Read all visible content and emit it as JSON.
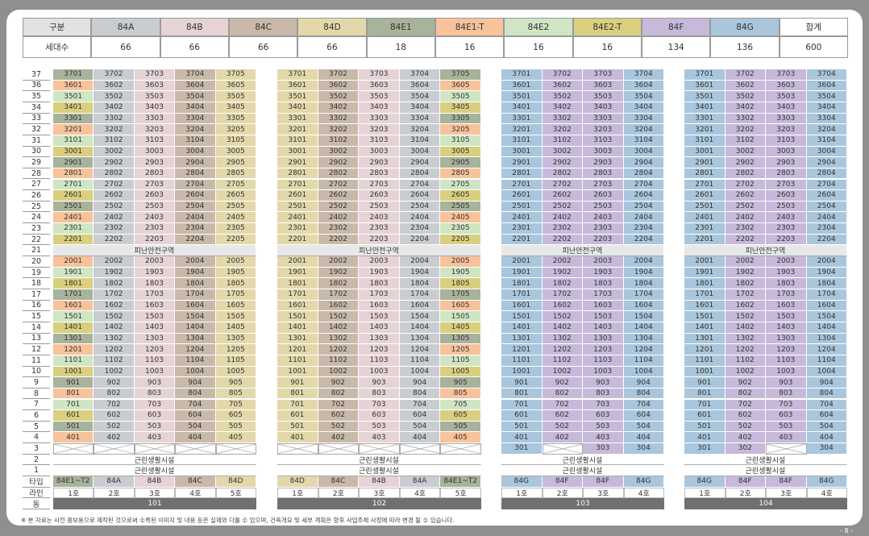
{
  "header": {
    "label_col": "구분",
    "count_label": "세대수",
    "types": [
      {
        "label": "84A",
        "color": "#c9cdd1",
        "count": 66
      },
      {
        "label": "84B",
        "color": "#e6d3d6",
        "count": 66
      },
      {
        "label": "84C",
        "color": "#c8b9a9",
        "count": 66
      },
      {
        "label": "84D",
        "color": "#e3d8aa",
        "count": 66
      },
      {
        "label": "84E1",
        "color": "#a8b39c",
        "count": 18
      },
      {
        "label": "84E1-T",
        "color": "#f8c29b",
        "count": 16
      },
      {
        "label": "84E2",
        "color": "#cfe5c3",
        "count": 16
      },
      {
        "label": "84E2-T",
        "color": "#d9cf7f",
        "count": 16
      },
      {
        "label": "84F",
        "color": "#c6b9da",
        "count": 134
      },
      {
        "label": "84G",
        "color": "#a9c6dc",
        "count": 136
      }
    ],
    "total_label": "합계",
    "total": 600
  },
  "floors": [
    37,
    36,
    35,
    34,
    33,
    32,
    31,
    30,
    29,
    28,
    27,
    26,
    25,
    24,
    23,
    22,
    21,
    20,
    19,
    18,
    17,
    16,
    15,
    14,
    13,
    12,
    11,
    10,
    9,
    8,
    7,
    6,
    5,
    4,
    3,
    2,
    1
  ],
  "row_labels": {
    "type": "타입",
    "line": "라인",
    "building": "동"
  },
  "buildings": [
    {
      "name": "101",
      "types": [
        "84E1~T2",
        "84A",
        "84B",
        "84C",
        "84D"
      ],
      "lines": [
        "1호",
        "2호",
        "3호",
        "4호",
        "5호"
      ],
      "rows": [
        [
          3701,
          3702,
          3703,
          3704,
          3705
        ],
        [
          3601,
          3602,
          3603,
          3604,
          3605
        ],
        [
          3501,
          3502,
          3503,
          3504,
          3505
        ],
        [
          3401,
          3402,
          3403,
          3404,
          3405
        ],
        [
          3301,
          3302,
          3303,
          3304,
          3305
        ],
        [
          3201,
          3202,
          3203,
          3204,
          3205
        ],
        [
          3101,
          3102,
          3103,
          3104,
          3105
        ],
        [
          3001,
          3002,
          3003,
          3004,
          3005
        ],
        [
          2901,
          2902,
          2903,
          2904,
          2905
        ],
        [
          2801,
          2802,
          2803,
          2804,
          2805
        ],
        [
          2701,
          2702,
          2703,
          2704,
          2705
        ],
        [
          2601,
          2602,
          2603,
          2604,
          2605
        ],
        [
          2501,
          2502,
          2503,
          2504,
          2505
        ],
        [
          2401,
          2402,
          2403,
          2404,
          2405
        ],
        [
          2301,
          2302,
          2303,
          2304,
          2305
        ],
        [
          2201,
          2202,
          2203,
          2204,
          2205
        ],
        "피난안전구역",
        [
          2001,
          2002,
          2003,
          2004,
          2005
        ],
        [
          1901,
          1902,
          1903,
          1904,
          1905
        ],
        [
          1801,
          1802,
          1803,
          1804,
          1805
        ],
        [
          1701,
          1702,
          1703,
          1704,
          1705
        ],
        [
          1601,
          1602,
          1603,
          1604,
          1605
        ],
        [
          1501,
          1502,
          1503,
          1504,
          1505
        ],
        [
          1401,
          1402,
          1403,
          1404,
          1405
        ],
        [
          1301,
          1302,
          1303,
          1304,
          1305
        ],
        [
          1201,
          1202,
          1203,
          1204,
          1205
        ],
        [
          1101,
          1102,
          1103,
          1104,
          1105
        ],
        [
          1001,
          1002,
          1003,
          1004,
          1005
        ],
        [
          901,
          902,
          903,
          904,
          905
        ],
        [
          801,
          802,
          803,
          804,
          805
        ],
        [
          701,
          702,
          703,
          704,
          705
        ],
        [
          601,
          602,
          603,
          604,
          605
        ],
        [
          501,
          502,
          503,
          504,
          505
        ],
        [
          401,
          402,
          403,
          404,
          405
        ],
        [
          null,
          null,
          null,
          null,
          null
        ],
        "근린생활시설",
        "근린생활시설"
      ]
    },
    {
      "name": "102",
      "types": [
        "84D",
        "84C",
        "84B",
        "84A",
        "84E1~T2"
      ],
      "lines": [
        "1호",
        "2호",
        "3호",
        "4호",
        "5호"
      ],
      "rows": [
        [
          3701,
          3702,
          3703,
          3704,
          3705
        ],
        [
          3601,
          3602,
          3603,
          3604,
          3605
        ],
        [
          3501,
          3502,
          3503,
          3504,
          3505
        ],
        [
          3401,
          3402,
          3403,
          3404,
          3405
        ],
        [
          3301,
          3302,
          3303,
          3304,
          3305
        ],
        [
          3201,
          3202,
          3203,
          3204,
          3205
        ],
        [
          3101,
          3102,
          3103,
          3104,
          3105
        ],
        [
          3001,
          3002,
          3003,
          3004,
          3005
        ],
        [
          2901,
          2902,
          2903,
          2904,
          2905
        ],
        [
          2801,
          2802,
          2803,
          2804,
          2805
        ],
        [
          2701,
          2702,
          2703,
          2704,
          2705
        ],
        [
          2601,
          2602,
          2603,
          2604,
          2605
        ],
        [
          2501,
          2502,
          2503,
          2504,
          2505
        ],
        [
          2401,
          2402,
          2403,
          2404,
          2405
        ],
        [
          2301,
          2302,
          2303,
          2304,
          2305
        ],
        [
          2201,
          2202,
          2203,
          2204,
          2205
        ],
        "피난안전구역",
        [
          2001,
          2002,
          2003,
          2004,
          2005
        ],
        [
          1901,
          1902,
          1903,
          1904,
          1905
        ],
        [
          1801,
          1802,
          1803,
          1804,
          1805
        ],
        [
          1701,
          1702,
          1703,
          1704,
          1705
        ],
        [
          1601,
          1602,
          1603,
          1604,
          1605
        ],
        [
          1501,
          1502,
          1503,
          1504,
          1505
        ],
        [
          1401,
          1402,
          1403,
          1404,
          1405
        ],
        [
          1301,
          1302,
          1303,
          1304,
          1305
        ],
        [
          1201,
          1202,
          1203,
          1204,
          1205
        ],
        [
          1101,
          1102,
          1103,
          1104,
          1105
        ],
        [
          1001,
          1002,
          1003,
          1004,
          1005
        ],
        [
          901,
          902,
          903,
          904,
          905
        ],
        [
          801,
          802,
          803,
          804,
          805
        ],
        [
          701,
          702,
          703,
          704,
          705
        ],
        [
          601,
          602,
          603,
          604,
          605
        ],
        [
          501,
          502,
          503,
          504,
          505
        ],
        [
          401,
          402,
          403,
          404,
          405
        ],
        [
          null,
          null,
          null,
          null,
          null
        ],
        "근린생활시설",
        "근린생활시설"
      ]
    },
    {
      "name": "103",
      "types": [
        "84G",
        "84F",
        "84F",
        "84G"
      ],
      "lines": [
        "1호",
        "2호",
        "3호",
        "4호"
      ],
      "rows": [
        [
          3701,
          3702,
          3703,
          3704
        ],
        [
          3601,
          3602,
          3603,
          3604
        ],
        [
          3501,
          3502,
          3503,
          3504
        ],
        [
          3401,
          3402,
          3403,
          3404
        ],
        [
          3301,
          3302,
          3303,
          3304
        ],
        [
          3201,
          3202,
          3203,
          3204
        ],
        [
          3101,
          3102,
          3103,
          3104
        ],
        [
          3001,
          3002,
          3003,
          3004
        ],
        [
          2901,
          2902,
          2903,
          2904
        ],
        [
          2801,
          2802,
          2803,
          2804
        ],
        [
          2701,
          2702,
          2703,
          2704
        ],
        [
          2601,
          2602,
          2603,
          2604
        ],
        [
          2501,
          2502,
          2503,
          2504
        ],
        [
          2401,
          2402,
          2403,
          2404
        ],
        [
          2301,
          2302,
          2303,
          2304
        ],
        [
          2201,
          2202,
          2203,
          2204
        ],
        "피난안전구역",
        [
          2001,
          2002,
          2003,
          2004
        ],
        [
          1901,
          1902,
          1903,
          1904
        ],
        [
          1801,
          1802,
          1803,
          1804
        ],
        [
          1701,
          1702,
          1703,
          1704
        ],
        [
          1601,
          1602,
          1603,
          1604
        ],
        [
          1501,
          1502,
          1503,
          1504
        ],
        [
          1401,
          1402,
          1403,
          1404
        ],
        [
          1301,
          1302,
          1303,
          1304
        ],
        [
          1201,
          1202,
          1203,
          1204
        ],
        [
          1101,
          1102,
          1103,
          1104
        ],
        [
          1001,
          1002,
          1003,
          1004
        ],
        [
          901,
          902,
          903,
          904
        ],
        [
          801,
          802,
          803,
          804
        ],
        [
          701,
          702,
          703,
          704
        ],
        [
          601,
          602,
          603,
          604
        ],
        [
          501,
          502,
          503,
          504
        ],
        [
          401,
          402,
          403,
          404
        ],
        [
          301,
          null,
          303,
          304
        ],
        "근린생활시설",
        "근린생활시설"
      ]
    },
    {
      "name": "104",
      "types": [
        "84G",
        "84F",
        "84F",
        "84G"
      ],
      "lines": [
        "1호",
        "2호",
        "3호",
        "4호"
      ],
      "rows": [
        [
          3701,
          3702,
          3703,
          3704
        ],
        [
          3601,
          3602,
          3603,
          3604
        ],
        [
          3501,
          3502,
          3503,
          3504
        ],
        [
          3401,
          3402,
          3403,
          3404
        ],
        [
          3301,
          3302,
          3303,
          3304
        ],
        [
          3201,
          3202,
          3203,
          3204
        ],
        [
          3101,
          3102,
          3103,
          3104
        ],
        [
          3001,
          3002,
          3003,
          3004
        ],
        [
          2901,
          2902,
          2903,
          2904
        ],
        [
          2801,
          2802,
          2803,
          2804
        ],
        [
          2701,
          2702,
          2703,
          2704
        ],
        [
          2601,
          2602,
          2603,
          2604
        ],
        [
          2501,
          2502,
          2503,
          2504
        ],
        [
          2401,
          2402,
          2403,
          2404
        ],
        [
          2301,
          2302,
          2303,
          2304
        ],
        [
          2201,
          2202,
          2203,
          2204
        ],
        "피난안전구역",
        [
          2001,
          2002,
          2003,
          2004
        ],
        [
          1901,
          1902,
          1903,
          1904
        ],
        [
          1801,
          1802,
          1803,
          1804
        ],
        [
          1701,
          1702,
          1703,
          1704
        ],
        [
          1601,
          1602,
          1603,
          1604
        ],
        [
          1501,
          1502,
          1503,
          1504
        ],
        [
          1401,
          1402,
          1403,
          1404
        ],
        [
          1301,
          1302,
          1303,
          1304
        ],
        [
          1201,
          1202,
          1203,
          1204
        ],
        [
          1101,
          1102,
          1103,
          1104
        ],
        [
          1001,
          1002,
          1003,
          1004
        ],
        [
          901,
          902,
          903,
          904
        ],
        [
          801,
          802,
          803,
          804
        ],
        [
          701,
          702,
          703,
          704
        ],
        [
          601,
          602,
          603,
          604
        ],
        [
          501,
          502,
          503,
          504
        ],
        [
          401,
          402,
          403,
          404
        ],
        [
          301,
          302,
          null,
          304
        ],
        "근린생활시설",
        "근린생활시설"
      ]
    }
  ],
  "footnote": "※ 본 자료는 사전 홍보용으로 제작된 것으로써 수록된 이미지 및 내용 등은 실제와 다를 수 있으며, 건축개요 및 세부 계획은 향후 사업주체 사정에 따라 변경 될 수 있습니다.",
  "page_number": "- 8 -"
}
